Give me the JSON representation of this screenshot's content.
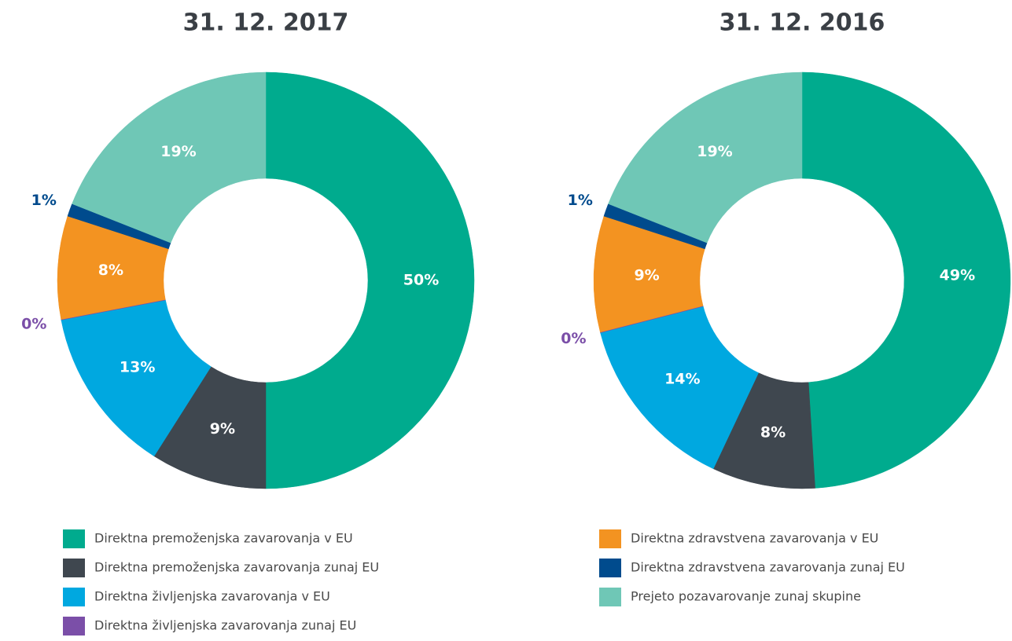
{
  "legend": {
    "categories": [
      "Direktna premoženjska zavarovanja v EU",
      "Direktna premoženjska zavarovanja zunaj EU",
      "Direktna življenjska zavarovanja v EU",
      "Direktna življenjska zavarovanja zunaj EU",
      "Direktna zdravstvena zavarovanja v EU",
      "Direktna zdravstvena zavarovanja zunaj EU",
      "Prejeto pozavarovanje zunaj skupine"
    ],
    "colors": [
      "#00ab8e",
      "#3f474f",
      "#00a8e0",
      "#7b4fa8",
      "#f39321",
      "#004b8d",
      "#6fc7b6"
    ]
  },
  "chart_data": [
    {
      "type": "donut",
      "title": "31. 12. 2017",
      "values": [
        50,
        9,
        13,
        0,
        8,
        1,
        19
      ],
      "value_labels": [
        "50%",
        "9%",
        "13%",
        "0%",
        "8%",
        "1%",
        "19%"
      ]
    },
    {
      "type": "donut",
      "title": "31. 12. 2016",
      "values": [
        49,
        8,
        14,
        0,
        9,
        1,
        19
      ],
      "value_labels": [
        "49%",
        "8%",
        "14%",
        "0%",
        "9%",
        "1%",
        "19%"
      ]
    }
  ]
}
